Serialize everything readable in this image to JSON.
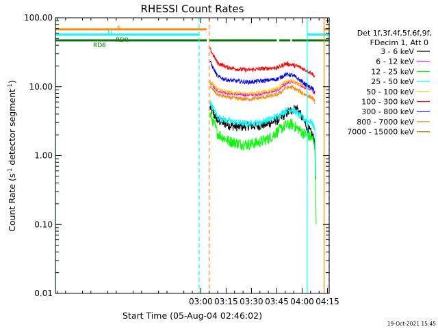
{
  "chart_data": {
    "type": "line",
    "title": "RHESSI Count Rates",
    "xlabel": "Start Time (05-Aug-04 02:46:02)",
    "ylabel_main": "Count Rate (s",
    "ylabel_sup1": "-1",
    "ylabel_mid": " detector segment",
    "ylabel_sup2": "-1",
    "ylabel_end": ")",
    "y_log": true,
    "ylim": [
      0.01,
      100
    ],
    "xlim_minutes": [
      -86,
      76
    ],
    "x_ticks": [
      {
        "label": "03:00",
        "minute": 0
      },
      {
        "label": "03:15",
        "minute": 15
      },
      {
        "label": "03:30",
        "minute": 30
      },
      {
        "label": "03:45",
        "minute": 45
      },
      {
        "label": "04:00",
        "minute": 60
      },
      {
        "label": "04:15",
        "minute": 75
      }
    ],
    "y_ticks": [
      {
        "label": "0.01",
        "value": 0.01
      },
      {
        "label": "0.10",
        "value": 0.1
      },
      {
        "label": "1.00",
        "value": 1
      },
      {
        "label": "10.00",
        "value": 10
      },
      {
        "label": "100.00",
        "value": 100
      }
    ],
    "legend_header": [
      "Det 1f,3f,4f,5f,6f,9f,",
      "FDecim 1, Att 0"
    ],
    "legend_position": "top-right, outside plot",
    "series": [
      {
        "name": "3 - 6 keV",
        "color": "#000000",
        "points": [
          [
            5.5,
            5.0
          ],
          [
            10,
            3.2
          ],
          [
            16,
            2.8
          ],
          [
            22,
            2.6
          ],
          [
            28,
            2.7
          ],
          [
            34,
            2.7
          ],
          [
            40,
            2.9
          ],
          [
            46,
            3.3
          ],
          [
            50,
            4.0
          ],
          [
            54,
            4.6
          ],
          [
            57,
            4.9
          ],
          [
            60,
            3.5
          ],
          [
            63,
            2.6
          ],
          [
            66,
            2.0
          ],
          [
            67.5,
            1.6
          ]
        ]
      },
      {
        "name": "6 - 12 keV",
        "color": "#ff00ff",
        "points": [
          [
            5.5,
            11.5
          ],
          [
            10,
            8.8
          ],
          [
            16,
            8.1
          ],
          [
            22,
            7.7
          ],
          [
            28,
            7.6
          ],
          [
            34,
            7.8
          ],
          [
            40,
            8.3
          ],
          [
            46,
            9.0
          ],
          [
            50,
            11.0
          ],
          [
            54,
            11.8
          ],
          [
            58,
            10.8
          ],
          [
            62,
            9.6
          ],
          [
            66,
            9.0
          ],
          [
            67.5,
            7.8
          ]
        ]
      },
      {
        "name": "12 - 25 keV",
        "color": "#00ff00",
        "points": [
          [
            5.5,
            4.0
          ],
          [
            10,
            2.1
          ],
          [
            16,
            1.65
          ],
          [
            22,
            1.5
          ],
          [
            28,
            1.45
          ],
          [
            34,
            1.55
          ],
          [
            40,
            1.75
          ],
          [
            46,
            2.3
          ],
          [
            50,
            2.7
          ],
          [
            54,
            2.85
          ],
          [
            58,
            2.4
          ],
          [
            62,
            2.0
          ],
          [
            66,
            1.8
          ],
          [
            67.5,
            1.3
          ]
        ]
      },
      {
        "name": "25 - 50 keV",
        "color": "#00ffff",
        "points": [
          [
            5.5,
            6.0
          ],
          [
            10,
            3.6
          ],
          [
            16,
            3.2
          ],
          [
            22,
            3.0
          ],
          [
            28,
            2.9
          ],
          [
            34,
            3.0
          ],
          [
            40,
            3.3
          ],
          [
            46,
            3.8
          ],
          [
            50,
            4.5
          ],
          [
            54,
            4.7
          ],
          [
            58,
            3.9
          ],
          [
            62,
            3.3
          ],
          [
            66,
            3.0
          ],
          [
            67.5,
            2.4
          ]
        ]
      },
      {
        "name": "50 - 100 keV",
        "color": "#ffcc00",
        "points": [
          [
            5.5,
            12.0
          ],
          [
            10,
            9.2
          ],
          [
            16,
            8.4
          ],
          [
            22,
            8.1
          ],
          [
            28,
            8.0
          ],
          [
            34,
            8.2
          ],
          [
            40,
            8.7
          ],
          [
            46,
            9.6
          ],
          [
            50,
            11.8
          ],
          [
            54,
            12.2
          ],
          [
            58,
            11.0
          ],
          [
            62,
            10.2
          ],
          [
            66,
            9.4
          ],
          [
            67.5,
            8.0
          ]
        ]
      },
      {
        "name": "100 - 300 keV",
        "color": "#ff0000",
        "points": [
          [
            5.5,
            35.0
          ],
          [
            10,
            22.0
          ],
          [
            16,
            19.0
          ],
          [
            22,
            18.0
          ],
          [
            28,
            17.5
          ],
          [
            34,
            18.0
          ],
          [
            40,
            18.5
          ],
          [
            46,
            19.0
          ],
          [
            50,
            21.5
          ],
          [
            54,
            20.8
          ],
          [
            58,
            19.5
          ],
          [
            62,
            17.5
          ],
          [
            66,
            15.5
          ],
          [
            67.5,
            14.0
          ]
        ]
      },
      {
        "name": "300 - 800 keV",
        "color": "#0000ff",
        "points": [
          [
            5.5,
            23.0
          ],
          [
            10,
            14.0
          ],
          [
            16,
            12.5
          ],
          [
            22,
            12.0
          ],
          [
            28,
            11.6
          ],
          [
            34,
            12.0
          ],
          [
            40,
            12.4
          ],
          [
            46,
            13.0
          ],
          [
            50,
            15.0
          ],
          [
            54,
            14.8
          ],
          [
            58,
            12.8
          ],
          [
            62,
            10.8
          ],
          [
            66,
            9.4
          ],
          [
            67.5,
            8.5
          ]
        ]
      },
      {
        "name": "800 - 7000 keV",
        "color": "#ff8800",
        "points": [
          [
            5.5,
            10.0
          ],
          [
            10,
            7.7
          ],
          [
            16,
            7.0
          ],
          [
            22,
            6.7
          ],
          [
            28,
            6.6
          ],
          [
            34,
            6.8
          ],
          [
            40,
            7.2
          ],
          [
            46,
            7.8
          ],
          [
            50,
            9.6
          ],
          [
            54,
            9.8
          ],
          [
            58,
            8.7
          ],
          [
            62,
            7.6
          ],
          [
            66,
            6.9
          ],
          [
            67.5,
            6.0
          ]
        ]
      },
      {
        "name": "7000 - 15000 keV",
        "color": "#b07000",
        "points": []
      }
    ],
    "drop_points": {
      "3 - 6 keV": [
        [
          67.5,
          1.6
        ],
        [
          68.0,
          0.45
        ]
      ],
      "12 - 25 keV": [
        [
          67.5,
          1.3
        ],
        [
          68.3,
          0.1
        ]
      ],
      "25 - 50 keV": [
        [
          67.5,
          2.4
        ],
        [
          68.1,
          0.5
        ]
      ]
    },
    "attenuator_states": [
      {
        "label": "S",
        "color": "#ff8800",
        "segments": [
          [
            -86,
            3.5
          ],
          [
            73,
            76
          ]
        ],
        "y_value": 68
      },
      {
        "label": "N",
        "color": "#00ffff",
        "segments": [
          [
            -86,
            -1
          ],
          [
            63,
            76
          ]
        ],
        "y_value": 57
      },
      {
        "label": "RD6",
        "color": "#007700",
        "segments": [
          [
            -86,
            3.5
          ],
          [
            5,
            45
          ],
          [
            46.5,
            53
          ],
          [
            54,
            76
          ]
        ],
        "y_value": 47
      },
      {
        "label": "RD0",
        "color": "#007700",
        "segments": [],
        "y_value": 47
      }
    ],
    "markers": [
      {
        "minute": -1,
        "color": "#00ffff",
        "style": "dashed"
      },
      {
        "minute": 5,
        "color": "#ff8800",
        "style": "dashed"
      },
      {
        "minute": 63,
        "color": "#00ffff",
        "style": "solid"
      },
      {
        "minute": 73,
        "color": "#ff8800",
        "style": "solid"
      },
      {
        "minute": 76,
        "color": "#00ffff",
        "style": "dashed"
      },
      {
        "minute": 76,
        "color": "#ff8800",
        "style": "dashed"
      },
      {
        "minute": -86,
        "color": "#00ffff",
        "style": "solid"
      }
    ],
    "grid": false
  },
  "footer": {
    "timestamp": "19-Oct-2021 15:45"
  }
}
